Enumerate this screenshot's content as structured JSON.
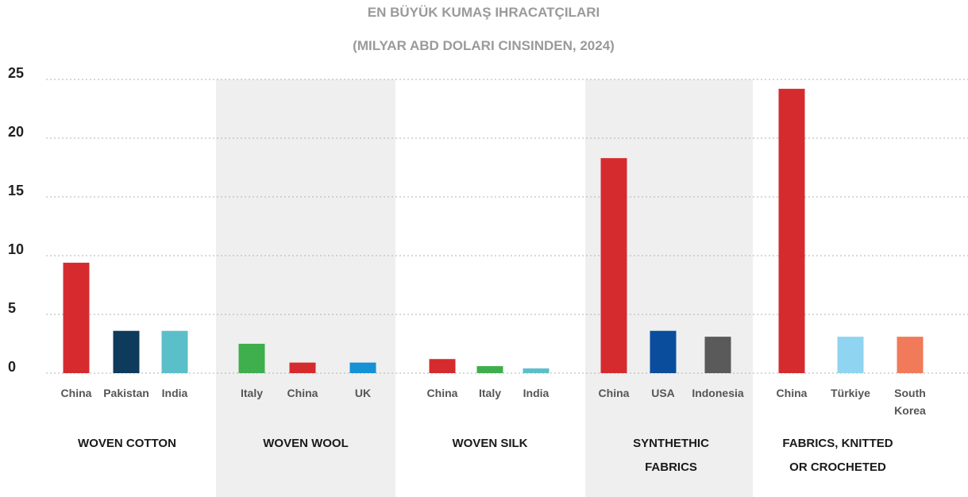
{
  "chart_data": {
    "type": "bar",
    "title": "EN BÜYÜK KUMAŞ IHRACATÇILARI",
    "subtitle": "(MILYAR ABD DOLARI CINSINDEN, 2024)",
    "xlabel": "",
    "ylabel": "",
    "ylim": [
      0,
      25
    ],
    "yticks": [
      "0",
      "5",
      "10",
      "15",
      "20",
      "25"
    ],
    "grid": true,
    "shaded_groups": [
      1,
      3
    ],
    "groups": [
      {
        "label_lines": [
          "WOVEN COTTON"
        ],
        "bars": [
          {
            "category": [
              "China"
            ],
            "value": 9.4,
            "color": "#d52b2e"
          },
          {
            "category": [
              "Pakistan"
            ],
            "value": 3.6,
            "color": "#0e3a5b"
          },
          {
            "category": [
              "India"
            ],
            "value": 3.6,
            "color": "#5bbfca"
          }
        ]
      },
      {
        "label_lines": [
          "WOVEN WOOL"
        ],
        "bars": [
          {
            "category": [
              "Italy"
            ],
            "value": 2.5,
            "color": "#3fae4d"
          },
          {
            "category": [
              "China"
            ],
            "value": 0.9,
            "color": "#d52b2e"
          },
          {
            "category": [
              "UK"
            ],
            "value": 0.9,
            "color": "#1591d6"
          }
        ]
      },
      {
        "label_lines": [
          "WOVEN SILK"
        ],
        "bars": [
          {
            "category": [
              "China"
            ],
            "value": 1.2,
            "color": "#d52b2e"
          },
          {
            "category": [
              "Italy"
            ],
            "value": 0.6,
            "color": "#3fae4d"
          },
          {
            "category": [
              "India"
            ],
            "value": 0.4,
            "color": "#5bbfca"
          }
        ]
      },
      {
        "label_lines": [
          "SYNTHETHIC",
          "FABRICS"
        ],
        "bars": [
          {
            "category": [
              "China"
            ],
            "value": 18.3,
            "color": "#d52b2e"
          },
          {
            "category": [
              "USA"
            ],
            "value": 3.6,
            "color": "#0a4d9c"
          },
          {
            "category": [
              "Indonesia"
            ],
            "value": 3.1,
            "color": "#5a5a5a"
          }
        ]
      },
      {
        "label_lines": [
          "FABRICS, KNITTED",
          "OR CROCHETED"
        ],
        "bars": [
          {
            "category": [
              "China"
            ],
            "value": 24.2,
            "color": "#d52b2e"
          },
          {
            "category": [
              "Türkiye"
            ],
            "value": 3.1,
            "color": "#8fd4f0"
          },
          {
            "category": [
              "South",
              "Korea"
            ],
            "value": 3.1,
            "color": "#f07a5a"
          }
        ]
      }
    ]
  },
  "colors": {
    "shade": "#efefef",
    "grid": "#b0b0b0",
    "title": "#9a9a9a"
  }
}
